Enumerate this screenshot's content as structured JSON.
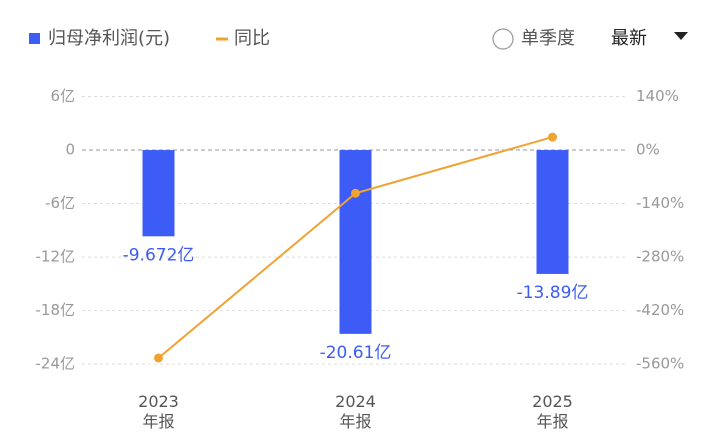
{
  "chart_data": {
    "type": "bar",
    "categories": [
      "2023\n年报",
      "2024\n年报",
      "2025\n年报"
    ],
    "series": [
      {
        "name": "归母净利润(元)",
        "color": "#3d5cf5",
        "type": "bar",
        "values": [
          -9.672,
          -20.61,
          -13.89
        ],
        "value_labels": [
          "-9.672亿",
          "-20.61亿",
          "-13.89亿"
        ]
      },
      {
        "name": "同比",
        "color": "#f0a232",
        "type": "line",
        "axis": "y2",
        "values": [
          -544,
          -113,
          34
        ]
      }
    ],
    "ylim": [
      -25,
      8
    ],
    "yticks": [
      {
        "value": 6,
        "label": "6亿"
      },
      0,
      {
        "value": -6,
        "label": "-6亿"
      },
      {
        "value": -12,
        "label": "-12亿"
      },
      {
        "value": -18,
        "label": "-18亿"
      },
      {
        "value": -24,
        "label": "-24亿"
      }
    ],
    "y2lim": [
      -583.3,
      186.7
    ],
    "y2ticks": [
      {
        "value": 140,
        "label": "140%"
      },
      {
        "value": 0,
        "label": "0%"
      },
      {
        "value": -140,
        "label": "-140%"
      },
      {
        "value": -280,
        "label": "-280%"
      },
      {
        "value": -420,
        "label": "-420%"
      },
      {
        "value": -560,
        "label": "-560%"
      }
    ],
    "grid": true,
    "controls": {
      "period": "单季度",
      "sort": "最新"
    }
  }
}
